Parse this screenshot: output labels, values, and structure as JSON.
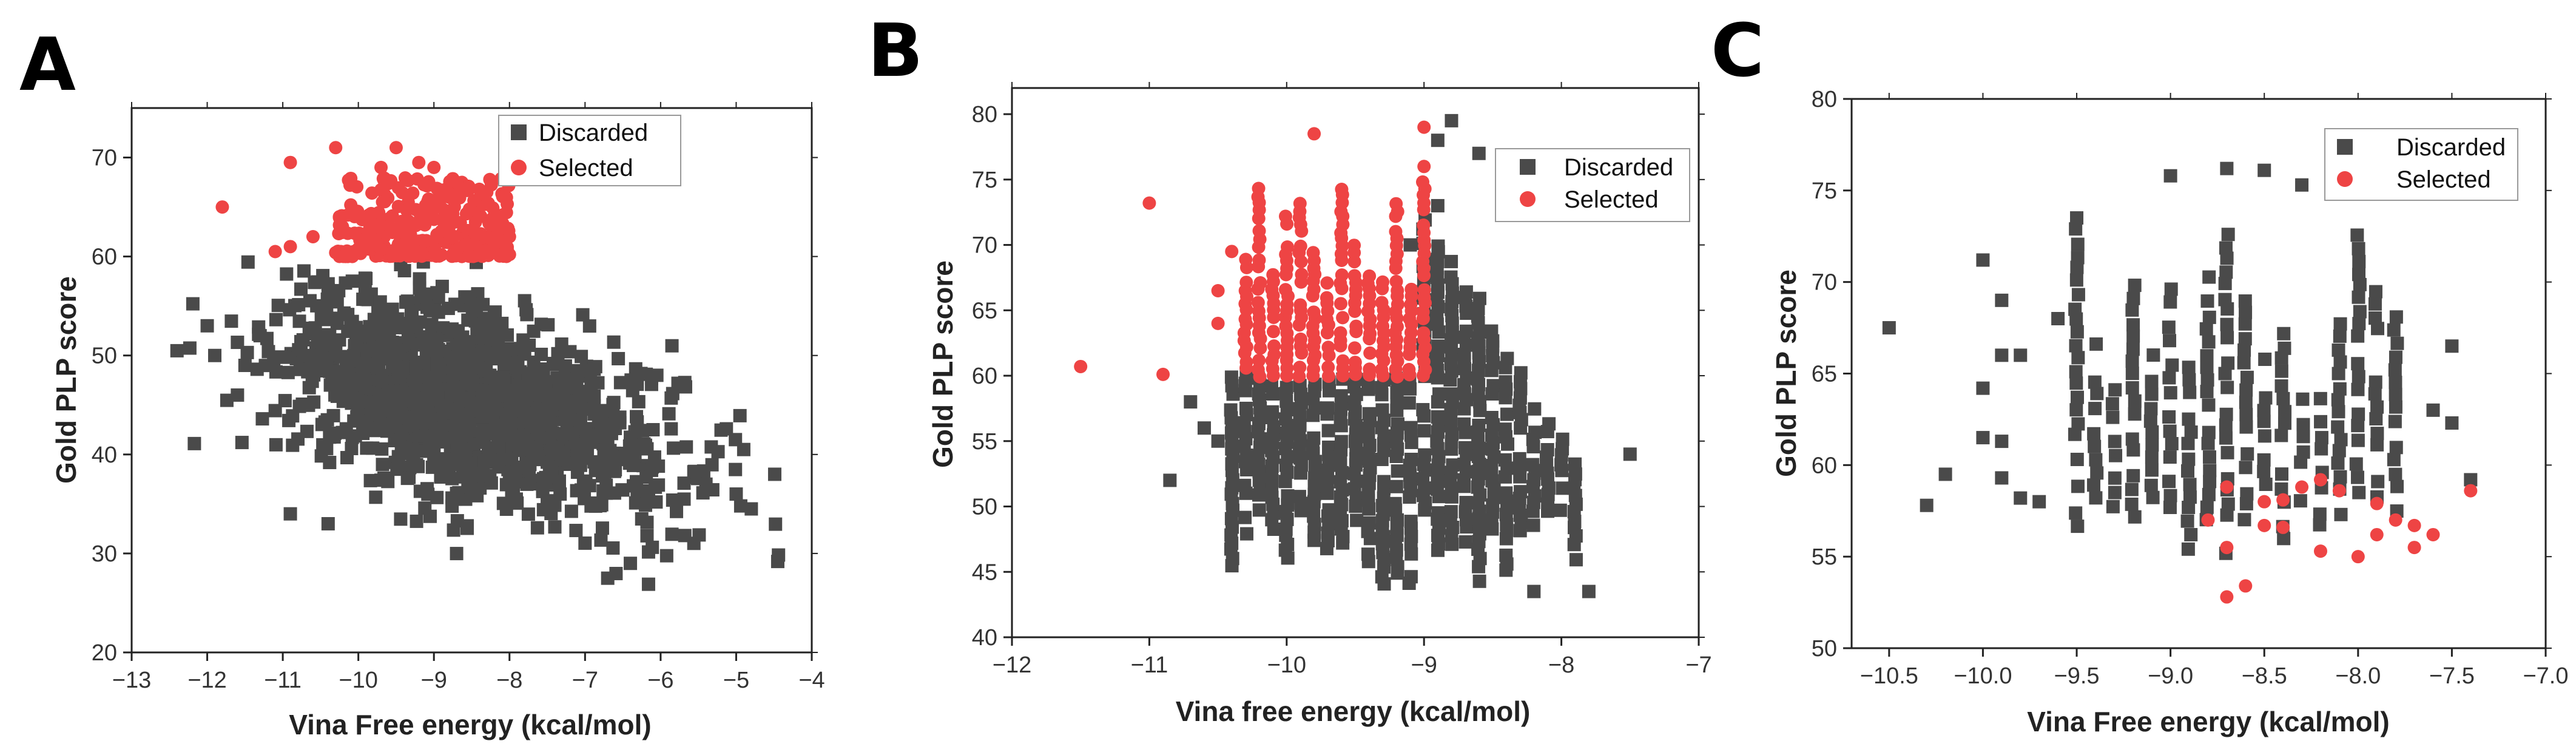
{
  "colors": {
    "discarded": "#4a4a4a",
    "selected": "#ee4444",
    "axis": "#222222",
    "legend_border": "#999999"
  },
  "chart_data": [
    {
      "panel": "A",
      "type": "scatter",
      "xlabel": "Vina Free energy (kcal/mol)",
      "ylabel": "Gold PLP score",
      "xlim": [
        -13,
        -4
      ],
      "ylim": [
        20,
        75
      ],
      "xticks": [
        -13,
        -12,
        -11,
        -10,
        -9,
        -8,
        -7,
        -6,
        -5,
        -4
      ],
      "yticks": [
        20,
        30,
        40,
        50,
        60,
        70
      ],
      "xtick_labels": [
        "−13",
        "−12",
        "−11",
        "−10",
        "−9",
        "−8",
        "−7",
        "−6",
        "−5",
        "−4"
      ],
      "ytick_labels": [
        "20",
        "30",
        "40",
        "50",
        "60",
        "70"
      ],
      "legend_position": "top-right",
      "series": [
        {
          "name": "Discarded",
          "marker": "square",
          "cloud": {
            "center": [
              -8.5,
              45
            ],
            "sigma": [
              1.3,
              5.5
            ],
            "corr": 0.5,
            "count": 1400,
            "ymax": 60,
            "seed": 7
          },
          "points": [
            [
              -12.0,
              53
            ],
            [
              -11.9,
              50
            ],
            [
              -11.6,
              46
            ],
            [
              -11.5,
              49
            ],
            [
              -11.3,
              52
            ],
            [
              -10.9,
              34
            ],
            [
              -10.4,
              33
            ],
            [
              -6.7,
              27.5
            ],
            [
              -6.4,
              29
            ],
            [
              -4.9,
              40.5
            ],
            [
              -4.8,
              34.5
            ],
            [
              -5.0,
              36
            ],
            [
              -5.4,
              37
            ]
          ]
        },
        {
          "name": "Selected",
          "marker": "circle",
          "band": {
            "xrange": [
              -10.3,
              -8.0
            ],
            "yrange": [
              60,
              68
            ],
            "count": 320,
            "seed": 11
          },
          "points": [
            [
              -11.8,
              65
            ],
            [
              -10.9,
              69.5
            ],
            [
              -10.3,
              71
            ],
            [
              -9.5,
              71
            ],
            [
              -11.1,
              60.5
            ],
            [
              -10.9,
              61
            ],
            [
              -10.6,
              62
            ],
            [
              -9.7,
              69
            ],
            [
              -9.2,
              69.5
            ],
            [
              -9.0,
              69
            ],
            [
              -8.7,
              67.5
            ],
            [
              -8.3,
              66.5
            ],
            [
              -8.0,
              62
            ]
          ]
        }
      ]
    },
    {
      "panel": "B",
      "type": "scatter",
      "xlabel": "Vina free energy (kcal/mol)",
      "ylabel": "Gold PLP score",
      "xlim": [
        -12,
        -7
      ],
      "ylim": [
        40,
        82
      ],
      "xticks": [
        -12,
        -11,
        -10,
        -9,
        -8,
        -7
      ],
      "yticks": [
        40,
        45,
        50,
        55,
        60,
        65,
        70,
        75,
        80
      ],
      "xtick_labels": [
        "−12",
        "−11",
        "−10",
        "−9",
        "−8",
        "−7"
      ],
      "ytick_labels": [
        "40",
        "45",
        "50",
        "55",
        "60",
        "65",
        "70",
        "75",
        "80"
      ],
      "legend_position": "top-right",
      "series": [
        {
          "name": "Discarded",
          "marker": "square",
          "columns": {
            "xstart": -10.4,
            "xend": -7.9,
            "step": 0.1,
            "seed": 23
          },
          "points": [
            [
              -10.85,
              52
            ],
            [
              -10.6,
              56
            ],
            [
              -10.7,
              58
            ],
            [
              -10.5,
              55
            ],
            [
              -7.5,
              54
            ],
            [
              -7.8,
              43.5
            ],
            [
              -8.2,
              43.5
            ],
            [
              -8.8,
              79.5
            ],
            [
              -8.6,
              77
            ],
            [
              -8.9,
              78
            ],
            [
              -9.1,
              70
            ],
            [
              -8.9,
              73
            ]
          ]
        },
        {
          "name": "Selected",
          "marker": "circle",
          "columns": {
            "xstart": -10.3,
            "xend": -9.0,
            "step": 0.1,
            "seed": 29
          },
          "points": [
            [
              -11.5,
              60.7
            ],
            [
              -11.0,
              73.2
            ],
            [
              -10.9,
              60.1
            ],
            [
              -9.8,
              78.5
            ],
            [
              -9.0,
              79
            ],
            [
              -9.0,
              76
            ],
            [
              -10.5,
              66.5
            ],
            [
              -10.5,
              64
            ],
            [
              -10.4,
              69.5
            ]
          ]
        }
      ]
    },
    {
      "panel": "C",
      "type": "scatter",
      "xlabel": "Vina Free energy (kcal/mol)",
      "ylabel": "Gold PLP score",
      "xlim": [
        -10.7,
        -7.0
      ],
      "ylim": [
        50,
        80
      ],
      "xticks": [
        -10.5,
        -10.0,
        -9.5,
        -9.0,
        -8.5,
        -8.0,
        -7.5,
        -7.0
      ],
      "yticks": [
        50,
        55,
        60,
        65,
        70,
        75,
        80
      ],
      "xtick_labels": [
        "−10.5",
        "−10.0",
        "−9.5",
        "−9.0",
        "−8.5",
        "−8.0",
        "−7.5",
        "−7.0"
      ],
      "ytick_labels": [
        "50",
        "55",
        "60",
        "65",
        "70",
        "75",
        "80"
      ],
      "legend_position": "top-right",
      "series": [
        {
          "name": "Discarded",
          "marker": "square",
          "columns": {
            "xstart": -9.5,
            "xend": -7.8,
            "step": 0.1,
            "seed": 41
          },
          "points": [
            [
              -10.5,
              67.5
            ],
            [
              -10.3,
              57.8
            ],
            [
              -10.2,
              59.5
            ],
            [
              -10.0,
              71.2
            ],
            [
              -10.0,
              64.2
            ],
            [
              -10.0,
              61.5
            ],
            [
              -9.9,
              69
            ],
            [
              -9.9,
              66
            ],
            [
              -9.9,
              61.3
            ],
            [
              -9.9,
              59.3
            ],
            [
              -9.8,
              66
            ],
            [
              -9.8,
              58.2
            ],
            [
              -9.7,
              58
            ],
            [
              -9.6,
              68
            ],
            [
              -9.5,
              73.5
            ],
            [
              -9.0,
              75.8
            ],
            [
              -8.7,
              76.2
            ],
            [
              -8.5,
              76.1
            ],
            [
              -8.3,
              75.3
            ],
            [
              -7.5,
              66.5
            ],
            [
              -7.4,
              59.2
            ],
            [
              -7.6,
              63
            ],
            [
              -7.5,
              62.3
            ]
          ]
        },
        {
          "name": "Selected",
          "marker": "circle",
          "points": [
            [
              -8.7,
              52.8
            ],
            [
              -8.6,
              53.4
            ],
            [
              -8.7,
              55.5
            ],
            [
              -8.8,
              57
            ],
            [
              -8.7,
              58.8
            ],
            [
              -8.5,
              58
            ],
            [
              -8.5,
              56.7
            ],
            [
              -8.4,
              58.1
            ],
            [
              -8.4,
              56.6
            ],
            [
              -8.3,
              58.8
            ],
            [
              -8.2,
              59.2
            ],
            [
              -8.2,
              55.3
            ],
            [
              -8.1,
              58.6
            ],
            [
              -8.0,
              55
            ],
            [
              -7.9,
              56.2
            ],
            [
              -7.9,
              57.9
            ],
            [
              -7.8,
              57
            ],
            [
              -7.7,
              56.7
            ],
            [
              -7.7,
              55.5
            ],
            [
              -7.6,
              56.2
            ],
            [
              -7.4,
              58.6
            ]
          ]
        }
      ]
    }
  ]
}
